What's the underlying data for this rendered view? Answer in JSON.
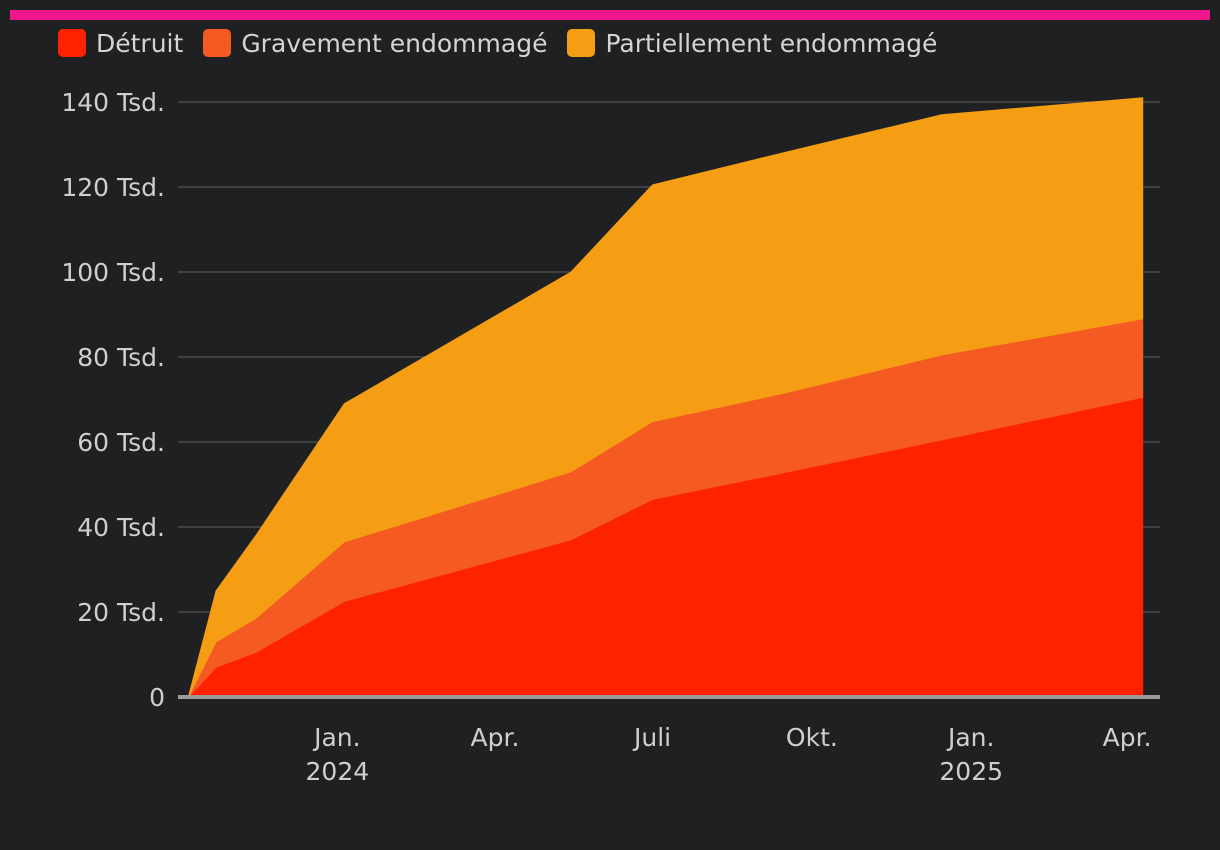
{
  "accent_bar_color": "#f0168c",
  "chart_data": {
    "type": "area",
    "stacked": true,
    "title": "",
    "xlabel": "",
    "ylabel": "",
    "x": [
      "2023-10-07",
      "2023-10-23",
      "2023-11-15",
      "2024-01-05",
      "2024-05-15",
      "2024-07-01",
      "2024-09-15",
      "2024-12-15",
      "2025-04-10"
    ],
    "series": [
      {
        "name": "Détruit",
        "color": "#ff2200",
        "values": [
          0,
          7000,
          10500,
          22500,
          37000,
          46500,
          52800,
          60500,
          70500
        ]
      },
      {
        "name": "Gravement endommagé",
        "color": "#f55a22",
        "values": [
          0,
          6000,
          8000,
          14000,
          16000,
          18300,
          18700,
          20000,
          18500
        ]
      },
      {
        "name": "Partiellement endommagé",
        "color": "#f59e14",
        "values": [
          0,
          12000,
          19500,
          32500,
          47000,
          55700,
          56600,
          56500,
          52000
        ]
      }
    ],
    "ylim": [
      0,
      140000
    ],
    "yticks": [
      0,
      20000,
      40000,
      60000,
      80000,
      100000,
      120000,
      140000
    ],
    "ytick_labels": [
      "0",
      "20 Tsd.",
      "40 Tsd.",
      "60 Tsd.",
      "80 Tsd.",
      "100 Tsd.",
      "120 Tsd.",
      "140 Tsd."
    ],
    "xlim": [
      "2023-10-01",
      "2025-04-20"
    ],
    "xticks": [
      {
        "date": "2024-01-01",
        "label": "Jan.",
        "sub": "2024"
      },
      {
        "date": "2024-04-01",
        "label": "Apr.",
        "sub": ""
      },
      {
        "date": "2024-07-01",
        "label": "Juli",
        "sub": ""
      },
      {
        "date": "2024-10-01",
        "label": "Okt.",
        "sub": ""
      },
      {
        "date": "2025-01-01",
        "label": "Jan.",
        "sub": "2025"
      },
      {
        "date": "2025-04-01",
        "label": "Apr.",
        "sub": ""
      }
    ],
    "grid": true,
    "legend": "top-left",
    "gridline_color": "#4a4b4d",
    "axis_color": "#9a9a9a"
  }
}
